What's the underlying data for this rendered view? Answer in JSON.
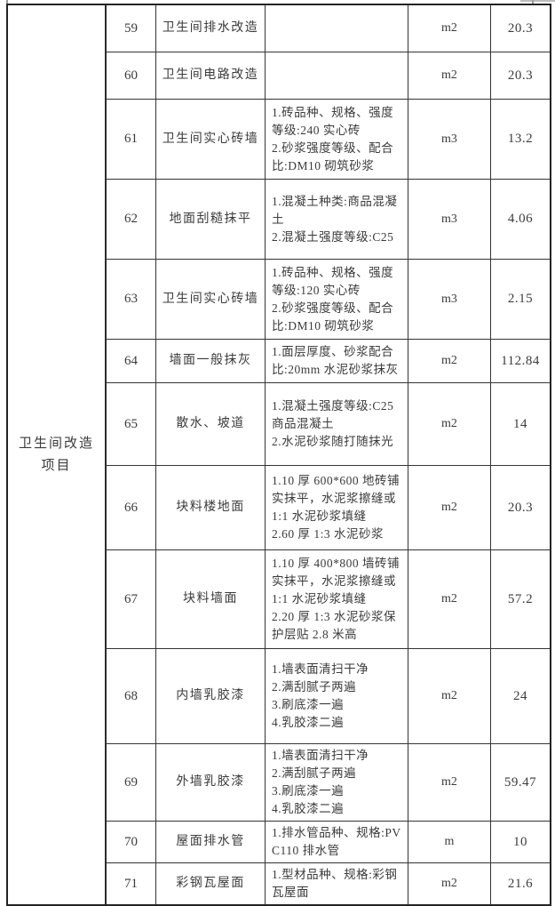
{
  "table": {
    "category_lines": [
      "卫生间改造",
      "项目"
    ],
    "rows": [
      {
        "no": "59",
        "name": "卫生间排水改造",
        "desc": [],
        "unit": "m2",
        "qty": "20.3"
      },
      {
        "no": "60",
        "name": "卫生间电路改造",
        "desc": [],
        "unit": "m2",
        "qty": "20.3"
      },
      {
        "no": "61",
        "name": "卫生间实心砖墙",
        "desc": [
          "1.砖品种、规格、强度等级:240 实心砖",
          "2.砂浆强度等级、配合比:DM10 砌筑砂浆"
        ],
        "unit": "m3",
        "qty": "13.2"
      },
      {
        "no": "62",
        "name": "地面刮糙抹平",
        "desc": [
          "1.混凝土种类:商品混凝土",
          "2.混凝土强度等级:C25"
        ],
        "unit": "m3",
        "qty": "4.06"
      },
      {
        "no": "63",
        "name": "卫生间实心砖墙",
        "desc": [
          "1.砖品种、规格、强度等级:120 实心砖",
          "2.砂浆强度等级、配合比:DM10 砌筑砂浆"
        ],
        "unit": "m3",
        "qty": "2.15"
      },
      {
        "no": "64",
        "name": "墙面一般抹灰",
        "desc": [
          "1.面层厚度、砂浆配合比:20mm 水泥砂浆抹灰"
        ],
        "unit": "m2",
        "qty": "112.84"
      },
      {
        "no": "65",
        "name": "散水、坡道",
        "desc": [
          "1.混凝土强度等级:C25 商品混凝土",
          "2.水泥砂浆随打随抹光"
        ],
        "unit": "m2",
        "qty": "14"
      },
      {
        "no": "66",
        "name": "块料楼地面",
        "desc": [
          "1.10 厚 600*600 地砖铺实抹平，水泥浆擦缝或1:1 水泥砂浆填缝",
          "2.60 厚 1:3 水泥砂浆"
        ],
        "unit": "m2",
        "qty": "20.3"
      },
      {
        "no": "67",
        "name": "块料墙面",
        "desc": [
          "1.10 厚 400*800 墙砖铺实抹平，水泥浆擦缝或1:1 水泥砂浆填缝",
          "2.20 厚 1:3 水泥砂浆保护层贴 2.8 米高"
        ],
        "unit": "m2",
        "qty": "57.2"
      },
      {
        "no": "68",
        "name": "内墙乳胶漆",
        "desc": [
          "1.墙表面清扫干净",
          "2.满刮腻子两遍",
          "3.刷底漆一遍",
          "4.乳胶漆二遍"
        ],
        "unit": "m2",
        "qty": "24"
      },
      {
        "no": "69",
        "name": "外墙乳胶漆",
        "desc": [
          "1.墙表面清扫干净",
          "2.满刮腻子两遍",
          "3.刷底漆一遍",
          "4.乳胶漆二遍"
        ],
        "unit": "m2",
        "qty": "59.47"
      },
      {
        "no": "70",
        "name": "屋面排水管",
        "desc": [
          "1.排水管品种、规格:PVC110 排水管"
        ],
        "unit": "m",
        "qty": "10"
      },
      {
        "no": "71",
        "name": "彩钢瓦屋面",
        "desc": [
          "1.型材品种、规格:彩钢瓦屋面"
        ],
        "unit": "m2",
        "qty": "21.6"
      }
    ]
  }
}
